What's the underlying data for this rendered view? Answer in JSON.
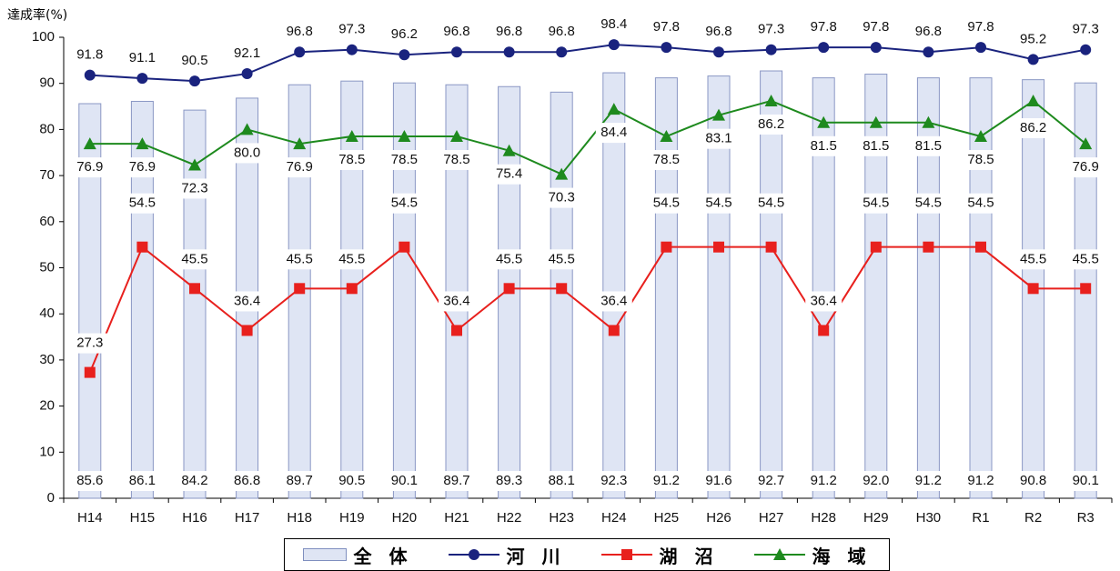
{
  "chart_data": {
    "type": "bar",
    "ylabel": "達成率(%)",
    "ylim": [
      0,
      100
    ],
    "yticks": [
      0,
      10,
      20,
      30,
      40,
      50,
      60,
      70,
      80,
      90,
      100
    ],
    "grid": false,
    "legend_placement": "bottom",
    "categories": [
      "H14",
      "H15",
      "H16",
      "H17",
      "H18",
      "H19",
      "H20",
      "H21",
      "H22",
      "H23",
      "H24",
      "H25",
      "H26",
      "H27",
      "H28",
      "H29",
      "H30",
      "R1",
      "R2",
      "R3"
    ],
    "series": [
      {
        "name": "全 体",
        "kind": "bar",
        "color": "#dfe5f4",
        "values": [
          85.6,
          86.1,
          84.2,
          86.8,
          89.7,
          90.5,
          90.1,
          89.7,
          89.3,
          88.1,
          92.3,
          91.2,
          91.6,
          92.7,
          91.2,
          92.0,
          91.2,
          91.2,
          90.8,
          90.1
        ]
      },
      {
        "name": "河 川",
        "kind": "line",
        "marker": "circle",
        "color": "#1a237e",
        "values": [
          91.8,
          91.1,
          90.5,
          92.1,
          96.8,
          97.3,
          96.2,
          96.8,
          96.8,
          96.8,
          98.4,
          97.8,
          96.8,
          97.3,
          97.8,
          97.8,
          96.8,
          97.8,
          95.2,
          97.3
        ]
      },
      {
        "name": "湖 沼",
        "kind": "line",
        "marker": "square",
        "color": "#e8201d",
        "values": [
          27.3,
          54.5,
          45.5,
          36.4,
          45.5,
          45.5,
          54.5,
          36.4,
          45.5,
          45.5,
          36.4,
          54.5,
          54.5,
          54.5,
          36.4,
          54.5,
          54.5,
          54.5,
          45.5,
          45.5
        ]
      },
      {
        "name": "海 域",
        "kind": "line",
        "marker": "triangle",
        "color": "#1e8a1e",
        "values": [
          76.9,
          76.9,
          72.3,
          80.0,
          76.9,
          78.5,
          78.5,
          78.5,
          75.4,
          70.3,
          84.4,
          78.5,
          83.1,
          86.2,
          81.5,
          81.5,
          81.5,
          78.5,
          86.2,
          76.9
        ]
      }
    ]
  }
}
